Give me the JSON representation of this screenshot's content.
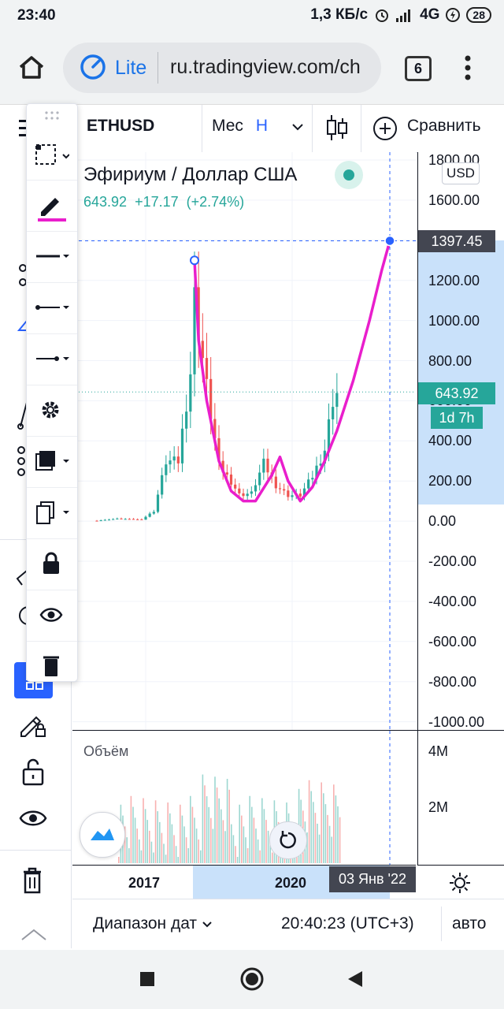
{
  "status_bar": {
    "time": "23:40",
    "network_speed": "1,3 КБ/с",
    "network_type": "4G",
    "battery": "28"
  },
  "browser": {
    "mode_label": "Lite",
    "url": "ru.tradingview.com/ch",
    "tab_count": "6"
  },
  "toolbar": {
    "symbol": "ETHUSD",
    "interval": "Мес",
    "chart_type_letter": "H",
    "compare_label": "Сравнить"
  },
  "legend": {
    "title": "Эфириум / Доллар США",
    "last_price": "643.92",
    "change": "+17.17",
    "change_percent": "(+2.74%)"
  },
  "price_axis": {
    "currency": "USD",
    "ticks": [
      "1800.00",
      "1600.00",
      "1400.00",
      "1200.00",
      "1000.00",
      "800.00",
      "600.00",
      "400.00",
      "200.00",
      "0.00",
      "-200.00",
      "-400.00",
      "-600.00",
      "-800.00",
      "-1000.00"
    ],
    "cursor_price": "1397.45",
    "last_price_tag": "643.92",
    "countdown": "1d 7h"
  },
  "volume_pane": {
    "label": "Объём",
    "ticks": [
      "4M",
      "2M"
    ]
  },
  "time_axis": {
    "ticks": [
      "2017",
      "2020"
    ],
    "cursor_date": "03 Янв '22"
  },
  "bottom_bar": {
    "date_range": "Диапазон дат",
    "clock": "20:40:23 (UTC+3)",
    "auto": "авто"
  },
  "colors": {
    "up": "#26a69a",
    "down": "#ef5350",
    "drawing": "#e91ecc",
    "accent": "#2962ff"
  },
  "chart_data": {
    "type": "candlestick",
    "series_name": "ETHUSD",
    "ylim": [
      -1000,
      1800
    ],
    "x_labels": [
      "2017",
      "2020"
    ],
    "monthly_close_approx": [
      [
        "2016-01",
        2
      ],
      [
        "2016-06",
        12
      ],
      [
        "2016-12",
        8
      ],
      [
        "2017-03",
        50
      ],
      [
        "2017-06",
        300
      ],
      [
        "2017-09",
        300
      ],
      [
        "2017-12",
        750
      ],
      [
        "2018-01",
        1120
      ],
      [
        "2018-04",
        670
      ],
      [
        "2018-07",
        280
      ],
      [
        "2018-10",
        200
      ],
      [
        "2018-12",
        133
      ],
      [
        "2019-03",
        140
      ],
      [
        "2019-06",
        290
      ],
      [
        "2019-09",
        180
      ],
      [
        "2019-12",
        130
      ],
      [
        "2020-03",
        130
      ],
      [
        "2020-06",
        225
      ],
      [
        "2020-09",
        360
      ],
      [
        "2020-11",
        615
      ],
      [
        "2020-12",
        644
      ]
    ],
    "last_price": 643.92,
    "cursor_price": 1397.45,
    "cursor_date": "03 Янв '22"
  }
}
